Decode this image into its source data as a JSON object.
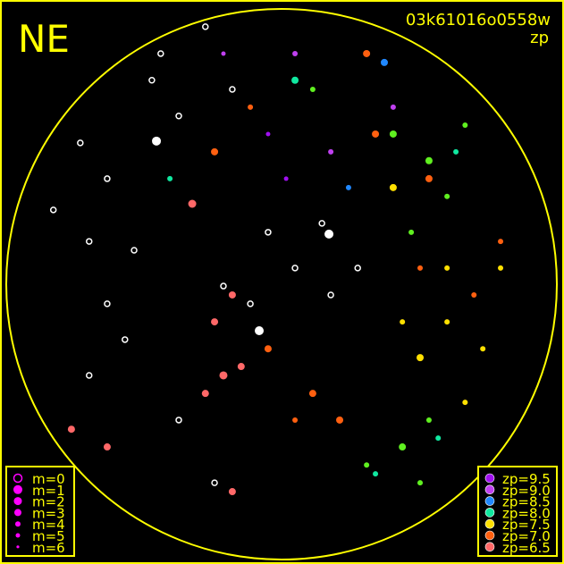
{
  "chart_data": {
    "type": "scatter",
    "title": "NE",
    "subtitle": "03k61016o0558w",
    "color_label": "zp",
    "frame_color": "#ffff00",
    "no_zp_color": "#ffffff",
    "xlim": [
      -90,
      90
    ],
    "ylim": [
      -90,
      90
    ],
    "size_legend": [
      {
        "label": "m=0",
        "m": 0
      },
      {
        "label": "m=1",
        "m": 1
      },
      {
        "label": "m=2",
        "m": 2
      },
      {
        "label": "m=3",
        "m": 3
      },
      {
        "label": "m=4",
        "m": 4
      },
      {
        "label": "m=5",
        "m": 5
      },
      {
        "label": "m=6",
        "m": 6
      }
    ],
    "size_legend_color": "#ff00ff",
    "color_legend": [
      {
        "label": "zp=9.5",
        "zp": 9.5,
        "color": "#a010f0"
      },
      {
        "label": "zp=9.0",
        "zp": 9.0,
        "color": "#c040f0"
      },
      {
        "label": "zp=8.5",
        "zp": 8.5,
        "color": "#2088ff"
      },
      {
        "label": "zp=8.0",
        "zp": 8.0,
        "color": "#10e8a0"
      },
      {
        "label": "zp=7.5",
        "zp": 7.5,
        "color": "#ffe000"
      },
      {
        "label": "zp=7.0",
        "zp": 7.0,
        "color": "#ff6010"
      },
      {
        "label": "zp=6.5",
        "zp": 6.5,
        "color": "#ff6868"
      }
    ],
    "points": [
      [
        -74.6,
        24.3,
        null,
        3
      ],
      [
        -62.9,
        14,
        null,
        3
      ],
      [
        -48.2,
        11.1,
        null,
        3
      ],
      [
        -39.5,
        75.4,
        null,
        3
      ],
      [
        -33.6,
        55,
        null,
        3
      ],
      [
        -57,
        34.5,
        null,
        3
      ],
      [
        -24.9,
        84.2,
        null,
        3
      ],
      [
        -16.1,
        63.7,
        null,
        3
      ],
      [
        -4.4,
        17,
        null,
        3
      ],
      [
        4.4,
        5.3,
        null,
        3
      ],
      [
        16.1,
        -3.5,
        null,
        3
      ],
      [
        -10.2,
        -6.4,
        null,
        3
      ],
      [
        -51.2,
        -18.1,
        null,
        3
      ],
      [
        -62.9,
        -29.8,
        null,
        3
      ],
      [
        -33.6,
        -44.4,
        null,
        3
      ],
      [
        -21.9,
        -64.9,
        null,
        3
      ],
      [
        -65.8,
        46.2,
        null,
        3
      ],
      [
        -42.4,
        66.7,
        null,
        3
      ],
      [
        24.9,
        5.3,
        null,
        3
      ],
      [
        13.2,
        19.9,
        null,
        3
      ],
      [
        -19,
        -0.6,
        null,
        3
      ],
      [
        -57,
        -6.4,
        null,
        3
      ],
      [
        15.5,
        16.4,
        null,
        1
      ],
      [
        -40.9,
        46.8,
        null,
        1
      ],
      [
        -7.3,
        -15.2,
        null,
        1
      ],
      [
        -21.9,
        43.3,
        7.0,
        3
      ],
      [
        -4.4,
        -21.1,
        7.0,
        3
      ],
      [
        10.2,
        -35.7,
        7.0,
        3
      ],
      [
        19,
        -44.4,
        7.0,
        3
      ],
      [
        30.7,
        49.1,
        7.0,
        3
      ],
      [
        -10.2,
        57.9,
        7.0,
        4
      ],
      [
        27.8,
        75.4,
        7.0,
        3
      ],
      [
        45.3,
        5.3,
        7.0,
        4
      ],
      [
        71.6,
        14,
        7.0,
        4
      ],
      [
        4.4,
        -44.4,
        7.0,
        4
      ],
      [
        48.2,
        34.5,
        7.0,
        3
      ],
      [
        62.9,
        -3.5,
        7.0,
        4
      ],
      [
        -19,
        -29.8,
        6.5,
        2
      ],
      [
        -13.2,
        -26.9,
        6.5,
        3
      ],
      [
        -24.9,
        -35.7,
        6.5,
        3
      ],
      [
        -16.1,
        -3.5,
        6.5,
        3
      ],
      [
        -68.7,
        -47.4,
        6.5,
        3
      ],
      [
        -57,
        -53.2,
        6.5,
        3
      ],
      [
        -16.1,
        -67.8,
        6.5,
        3
      ],
      [
        -29.2,
        26.3,
        6.5,
        2
      ],
      [
        -21.9,
        -12.3,
        6.5,
        3
      ],
      [
        36.5,
        49.1,
        7.75,
        3
      ],
      [
        48.2,
        40.4,
        7.75,
        3
      ],
      [
        54.1,
        28.7,
        7.75,
        4
      ],
      [
        60,
        52,
        7.75,
        4
      ],
      [
        42.4,
        17,
        7.75,
        4
      ],
      [
        39.5,
        -53.2,
        7.75,
        3
      ],
      [
        27.8,
        -59.1,
        7.75,
        4
      ],
      [
        48.2,
        -44.4,
        7.75,
        4
      ],
      [
        10.2,
        63.7,
        7.75,
        4
      ],
      [
        45.3,
        -64.9,
        7.75,
        4
      ],
      [
        54.1,
        -12.3,
        7.5,
        4
      ],
      [
        45.3,
        -24,
        7.5,
        3
      ],
      [
        65.8,
        -21.1,
        7.5,
        4
      ],
      [
        60,
        -38.6,
        7.5,
        4
      ],
      [
        71.6,
        5.3,
        7.5,
        4
      ],
      [
        36.5,
        31.6,
        7.5,
        3
      ],
      [
        54.1,
        5.3,
        7.5,
        4
      ],
      [
        39.5,
        -12.3,
        7.5,
        4
      ],
      [
        4.4,
        66.7,
        8.0,
        3
      ],
      [
        57,
        43.3,
        8.0,
        4
      ],
      [
        51.2,
        -50.3,
        8.0,
        4
      ],
      [
        30.7,
        -62,
        8.0,
        4
      ],
      [
        -36.5,
        34.5,
        8.0,
        4
      ],
      [
        4.4,
        75.4,
        9.0,
        4
      ],
      [
        16.1,
        43.3,
        9.0,
        4
      ],
      [
        -4.4,
        49.1,
        9.5,
        5
      ],
      [
        36.5,
        57.9,
        9.0,
        4
      ],
      [
        1.5,
        34.5,
        9.5,
        5
      ],
      [
        -19,
        75.4,
        9.0,
        5
      ],
      [
        33.6,
        72.5,
        8.5,
        3
      ],
      [
        21.9,
        31.6,
        8.5,
        4
      ]
    ]
  }
}
